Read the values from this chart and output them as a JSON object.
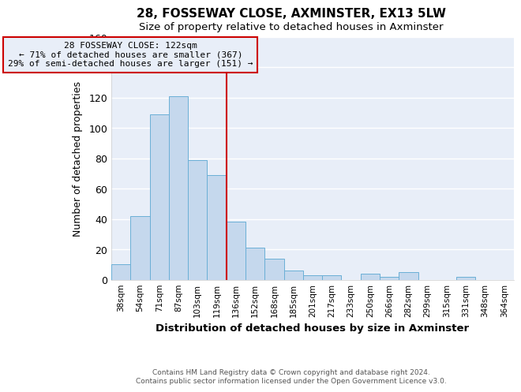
{
  "title": "28, FOSSEWAY CLOSE, AXMINSTER, EX13 5LW",
  "subtitle": "Size of property relative to detached houses in Axminster",
  "xlabel": "Distribution of detached houses by size in Axminster",
  "ylabel": "Number of detached properties",
  "bar_labels": [
    "38sqm",
    "54sqm",
    "71sqm",
    "87sqm",
    "103sqm",
    "119sqm",
    "136sqm",
    "152sqm",
    "168sqm",
    "185sqm",
    "201sqm",
    "217sqm",
    "233sqm",
    "250sqm",
    "266sqm",
    "282sqm",
    "299sqm",
    "315sqm",
    "331sqm",
    "348sqm",
    "364sqm"
  ],
  "bar_values": [
    10,
    42,
    109,
    121,
    79,
    69,
    38,
    21,
    14,
    6,
    3,
    3,
    0,
    4,
    2,
    5,
    0,
    0,
    2,
    0,
    0
  ],
  "bar_color": "#c5d8ed",
  "bar_edge_color": "#6aafd6",
  "ylim": [
    0,
    160
  ],
  "yticks": [
    0,
    20,
    40,
    60,
    80,
    100,
    120,
    140,
    160
  ],
  "vline_x": 5.5,
  "vline_color": "#cc0000",
  "annotation_title": "28 FOSSEWAY CLOSE: 122sqm",
  "annotation_line1": "← 71% of detached houses are smaller (367)",
  "annotation_line2": "29% of semi-detached houses are larger (151) →",
  "annotation_box_color": "#cc0000",
  "footer_line1": "Contains HM Land Registry data © Crown copyright and database right 2024.",
  "footer_line2": "Contains public sector information licensed under the Open Government Licence v3.0.",
  "plot_bg_color": "#e8eef8",
  "fig_bg_color": "#ffffff",
  "grid_color": "#ffffff"
}
